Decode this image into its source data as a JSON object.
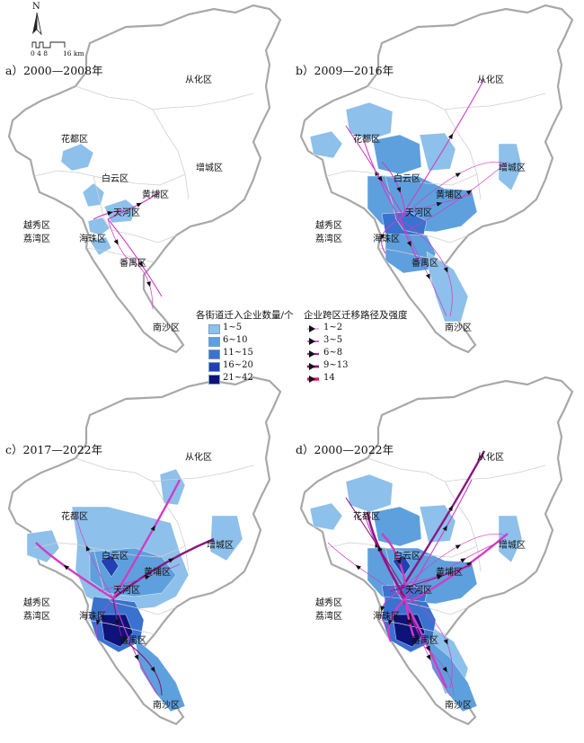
{
  "compass": {
    "north": "N",
    "scale_text": "0 4 8",
    "scale_unit": "16 km"
  },
  "panels": [
    {
      "title": "a）2000—2008年",
      "labels": {
        "conghua": "从化区",
        "huadu": "花都区",
        "baiyun": "白云区",
        "zengcheng": "增城区",
        "huangpu": "黄埔区",
        "tianhe": "天河区",
        "yuexiu": "越秀区",
        "liwan": "荔湾区",
        "haizhu": "海珠区",
        "panyu": "番禺区",
        "nansha": "南沙区"
      }
    },
    {
      "title": "b）2009—2016年",
      "labels": {
        "conghua": "从化区",
        "huadu": "花都区",
        "baiyun": "白云区",
        "zengcheng": "增城区",
        "huangpu": "黄埔区",
        "tianhe": "天河区",
        "yuexiu": "越秀区",
        "liwan": "荔湾区",
        "haizhu": "海珠区",
        "panyu": "番禺区",
        "nansha": "南沙区"
      }
    },
    {
      "title": "c）2017—2022年",
      "labels": {
        "conghua": "从化区",
        "huadu": "花都区",
        "baiyun": "白云区",
        "zengcheng": "增城区",
        "huangpu": "黄埔区",
        "tianhe": "天河区",
        "yuexiu": "越秀区",
        "liwan": "荔湾区",
        "haizhu": "海珠区",
        "panyu": "番禺区",
        "nansha": "南沙区"
      }
    },
    {
      "title": "d）2000—2022年",
      "labels": {
        "conghua": "从化区",
        "huadu": "花都区",
        "baiyun": "白云区",
        "zengcheng": "增城区",
        "huangpu": "黄埔区",
        "tianhe": "天河区",
        "yuexiu": "越秀区",
        "liwan": "荔湾区",
        "haizhu": "海珠区",
        "panyu": "番禺区",
        "nansha": "南沙区"
      }
    }
  ],
  "legend_fill": {
    "title": "各街道迁入企业数量/个",
    "items": [
      {
        "label": "1~5",
        "color": "#8dc0ea"
      },
      {
        "label": "6~10",
        "color": "#5ea0de"
      },
      {
        "label": "11~15",
        "color": "#3a72cf"
      },
      {
        "label": "16~20",
        "color": "#2340b0"
      },
      {
        "label": "21~42",
        "color": "#0d1378"
      }
    ]
  },
  "legend_flow": {
    "title": "企业跨区迁移路径及强度",
    "items": [
      {
        "label": "1~2",
        "color": "#e060d0"
      },
      {
        "label": "3~5",
        "color": "#c93cb4"
      },
      {
        "label": "6~8",
        "color": "#a8239a"
      },
      {
        "label": "9~13",
        "color": "#8a1682"
      },
      {
        "label": "14",
        "color": "#d81b60"
      }
    ]
  },
  "colors": {
    "outline": "#a8a8a8",
    "district_border": "#cfcfcf",
    "flow": "#d03cc4"
  }
}
